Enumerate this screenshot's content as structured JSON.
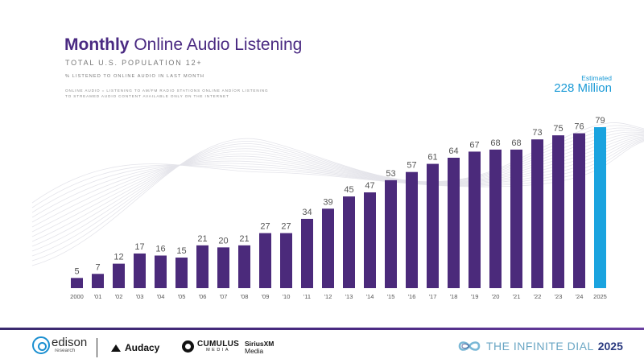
{
  "header": {
    "title_bold": "Monthly",
    "title_rest": "Online Audio Listening",
    "subtitle": "TOTAL U.S. POPULATION 12+",
    "subtitle2": "% LISTENED TO ONLINE AUDIO IN LAST MONTH",
    "definition": "ONLINE AUDIO = LISTENING TO AM/FM RADIO STATIONS ONLINE AND/OR LISTENING TO STREAMED AUDIO CONTENT AVAILABLE ONLY ON THE INTERNET"
  },
  "estimate": {
    "label": "Estimated",
    "value": "228 Million"
  },
  "colors": {
    "bar": "#4b2a7b",
    "highlight": "#1aa3df",
    "label": "#555555"
  },
  "chart_data": {
    "type": "bar",
    "categories": [
      "2000",
      "'01",
      "'02",
      "'03",
      "'04",
      "'05",
      "'06",
      "'07",
      "'08",
      "'09",
      "'10",
      "'11",
      "'12",
      "'13",
      "'14",
      "'15",
      "'16",
      "'17",
      "'18",
      "'19",
      "'20",
      "'21",
      "'22",
      "'23",
      "'24",
      "2025"
    ],
    "values": [
      5,
      7,
      12,
      17,
      16,
      15,
      21,
      20,
      21,
      27,
      27,
      34,
      39,
      45,
      47,
      53,
      57,
      61,
      64,
      67,
      68,
      68,
      73,
      75,
      76,
      79
    ],
    "highlight_category": "2025",
    "title": "",
    "xlabel": "",
    "ylabel": "",
    "ylim": [
      0,
      80
    ],
    "grid": false,
    "legend": "none"
  },
  "footer": {
    "edison": "edison",
    "edison_sub": "research",
    "audacy": "Audacy",
    "cumulus": "CUMULUS",
    "cumulus_sub": "MEDIA",
    "sirius_line1": "SiriusXM",
    "sirius_line2": "Media",
    "infinite_text": "THE INFINITE DIAL",
    "infinite_year": "2025",
    "edison_icon": "edison-logo-icon",
    "audacy_icon": "audacy-logo-icon",
    "cumulus_icon": "cumulus-logo-icon",
    "infinite_icon": "infinity-logo-icon"
  }
}
